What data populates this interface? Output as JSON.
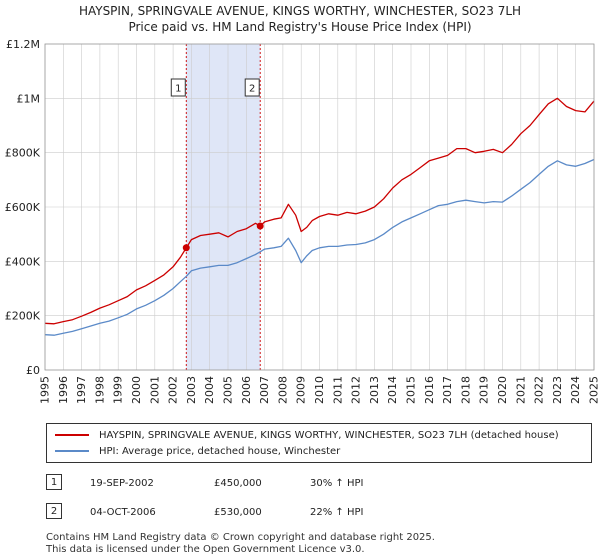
{
  "title_line1": "HAYSPIN, SPRINGVALE AVENUE, KINGS WORTHY, WINCHESTER, SO23 7LH",
  "title_line2": "Price paid vs. HM Land Registry's House Price Index (HPI)",
  "legend": {
    "property_label": "HAYSPIN, SPRINGVALE AVENUE, KINGS WORTHY, WINCHESTER, SO23 7LH (detached house)",
    "hpi_label": "HPI: Average price, detached house, Winchester"
  },
  "transactions": [
    {
      "num": "1",
      "date": "19-SEP-2002",
      "price": "£450,000",
      "hpi": "30% ↑ HPI"
    },
    {
      "num": "2",
      "date": "04-OCT-2006",
      "price": "£530,000",
      "hpi": "22% ↑ HPI"
    }
  ],
  "footer_line1": "Contains HM Land Registry data © Crown copyright and database right 2025.",
  "footer_line2": "This data is licensed under the Open Government Licence v3.0.",
  "colors": {
    "property": "#cc0000",
    "hpi": "#5b8ac8",
    "shade": "#dfe6f7",
    "grid": "#cccccc",
    "marker_line": "#cc0000"
  },
  "chart_data": {
    "type": "line",
    "x_range": [
      1995,
      2025
    ],
    "ylim": [
      0,
      1200000
    ],
    "y_ticks": [
      0,
      200000,
      400000,
      600000,
      800000,
      1000000,
      1200000
    ],
    "y_tick_labels": [
      "£0",
      "£200K",
      "£400K",
      "£600K",
      "£800K",
      "£1M",
      "£1.2M"
    ],
    "x_ticks": [
      1995,
      1996,
      1997,
      1998,
      1999,
      2000,
      2001,
      2002,
      2003,
      2004,
      2005,
      2006,
      2007,
      2008,
      2009,
      2010,
      2011,
      2012,
      2013,
      2014,
      2015,
      2016,
      2017,
      2018,
      2019,
      2020,
      2021,
      2022,
      2023,
      2024,
      2025
    ],
    "shaded_period": [
      2002.72,
      2006.76
    ],
    "sale_markers": [
      {
        "label": "1",
        "x": 2002.72,
        "y": 450000
      },
      {
        "label": "2",
        "x": 2006.76,
        "y": 530000
      }
    ],
    "series": [
      {
        "name": "HAYSPIN, SPRINGVALE AVENUE, KINGS WORTHY, WINCHESTER, SO23 7LH (detached house)",
        "x": [
          1995,
          1995.5,
          1996,
          1996.5,
          1997,
          1997.5,
          1998,
          1998.5,
          1999,
          1999.5,
          2000,
          2000.5,
          2001,
          2001.5,
          2002,
          2002.4,
          2002.72,
          2003,
          2003.5,
          2004,
          2004.5,
          2005,
          2005.5,
          2006,
          2006.5,
          2006.76,
          2007,
          2007.5,
          2007.9,
          2008.3,
          2008.7,
          2009,
          2009.3,
          2009.6,
          2010,
          2010.5,
          2011,
          2011.5,
          2012,
          2012.5,
          2013,
          2013.5,
          2014,
          2014.5,
          2015,
          2015.5,
          2016,
          2016.5,
          2017,
          2017.5,
          2018,
          2018.5,
          2019,
          2019.5,
          2020,
          2020.5,
          2021,
          2021.5,
          2022,
          2022.5,
          2023,
          2023.5,
          2024,
          2024.5,
          2025
        ],
        "y": [
          172000,
          170000,
          178000,
          185000,
          198000,
          212000,
          228000,
          240000,
          255000,
          270000,
          295000,
          310000,
          330000,
          350000,
          380000,
          415000,
          450000,
          480000,
          495000,
          500000,
          505000,
          490000,
          510000,
          520000,
          540000,
          530000,
          545000,
          555000,
          560000,
          610000,
          570000,
          510000,
          525000,
          550000,
          565000,
          575000,
          570000,
          580000,
          575000,
          585000,
          600000,
          630000,
          670000,
          700000,
          720000,
          745000,
          770000,
          780000,
          790000,
          815000,
          815000,
          800000,
          805000,
          812000,
          800000,
          830000,
          870000,
          900000,
          940000,
          980000,
          1000000,
          970000,
          955000,
          950000,
          990000
        ]
      },
      {
        "name": "HPI: Average price, detached house, Winchester",
        "x": [
          1995,
          1995.5,
          1996,
          1996.5,
          1997,
          1997.5,
          1998,
          1998.5,
          1999,
          1999.5,
          2000,
          2000.5,
          2001,
          2001.5,
          2002,
          2002.4,
          2002.72,
          2003,
          2003.5,
          2004,
          2004.5,
          2005,
          2005.5,
          2006,
          2006.5,
          2006.76,
          2007,
          2007.5,
          2007.9,
          2008.3,
          2008.7,
          2009,
          2009.3,
          2009.6,
          2010,
          2010.5,
          2011,
          2011.5,
          2012,
          2012.5,
          2013,
          2013.5,
          2014,
          2014.5,
          2015,
          2015.5,
          2016,
          2016.5,
          2017,
          2017.5,
          2018,
          2018.5,
          2019,
          2019.5,
          2020,
          2020.5,
          2021,
          2021.5,
          2022,
          2022.5,
          2023,
          2023.5,
          2024,
          2024.5,
          2025
        ],
        "y": [
          130000,
          128000,
          135000,
          142000,
          152000,
          162000,
          172000,
          180000,
          192000,
          205000,
          225000,
          238000,
          255000,
          275000,
          300000,
          325000,
          345000,
          365000,
          375000,
          380000,
          385000,
          385000,
          395000,
          410000,
          425000,
          435000,
          445000,
          450000,
          455000,
          485000,
          440000,
          395000,
          420000,
          440000,
          450000,
          455000,
          455000,
          460000,
          462000,
          468000,
          480000,
          500000,
          525000,
          545000,
          560000,
          575000,
          590000,
          605000,
          610000,
          620000,
          625000,
          620000,
          615000,
          620000,
          618000,
          640000,
          665000,
          690000,
          720000,
          750000,
          770000,
          755000,
          750000,
          760000,
          775000
        ]
      }
    ]
  }
}
